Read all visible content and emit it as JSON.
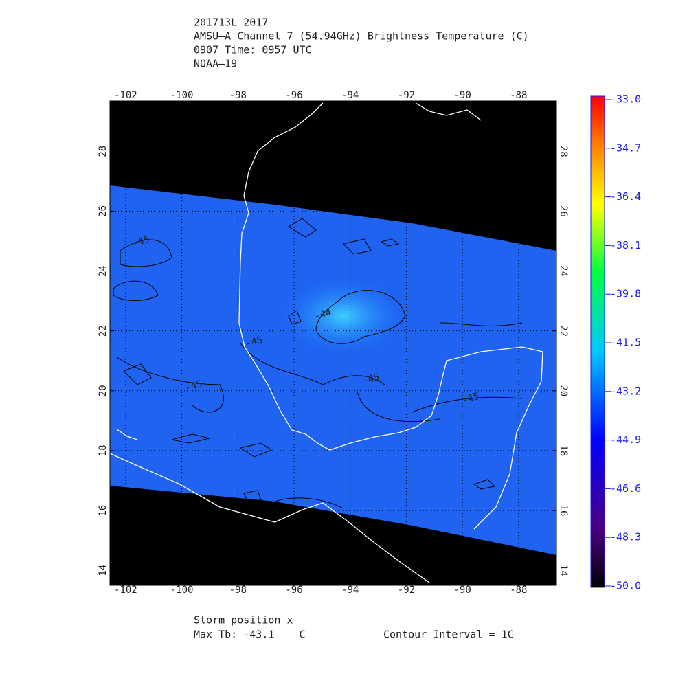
{
  "chart_data": {
    "type": "map",
    "title_lines": [
      "201713L 2017",
      "AMSU–A Channel 7 (54.94GHz) Brightness Temperature (C)",
      "0907 Time: 0957 UTC",
      "NOAA–19"
    ],
    "xlim": [
      -102.56,
      -86.65
    ],
    "xticks": [
      -102,
      -100,
      -98,
      -96,
      -94,
      -92,
      -90,
      -88
    ],
    "ylim": [
      13.5,
      29.68
    ],
    "yticks": [
      14,
      16,
      18,
      20,
      22,
      24,
      26,
      28
    ],
    "colorbar_lim": [
      -50,
      -33
    ],
    "colorbar_ticks": [
      {
        "value": -33,
        "label": "-33.0"
      },
      -34.7,
      -36.4,
      -38.1,
      -39.8,
      -41.5,
      -43.2,
      -44.9,
      -46.6,
      -48.3,
      {
        "value": -50,
        "label": "-50.0"
      }
    ],
    "contour_labels": [
      "-45",
      "-44",
      "-45",
      "-45",
      "-45",
      "-45"
    ],
    "footer": [
      "Storm position x",
      "Max Tb: -43.1    C",
      "Contour Interval = 1C"
    ]
  }
}
